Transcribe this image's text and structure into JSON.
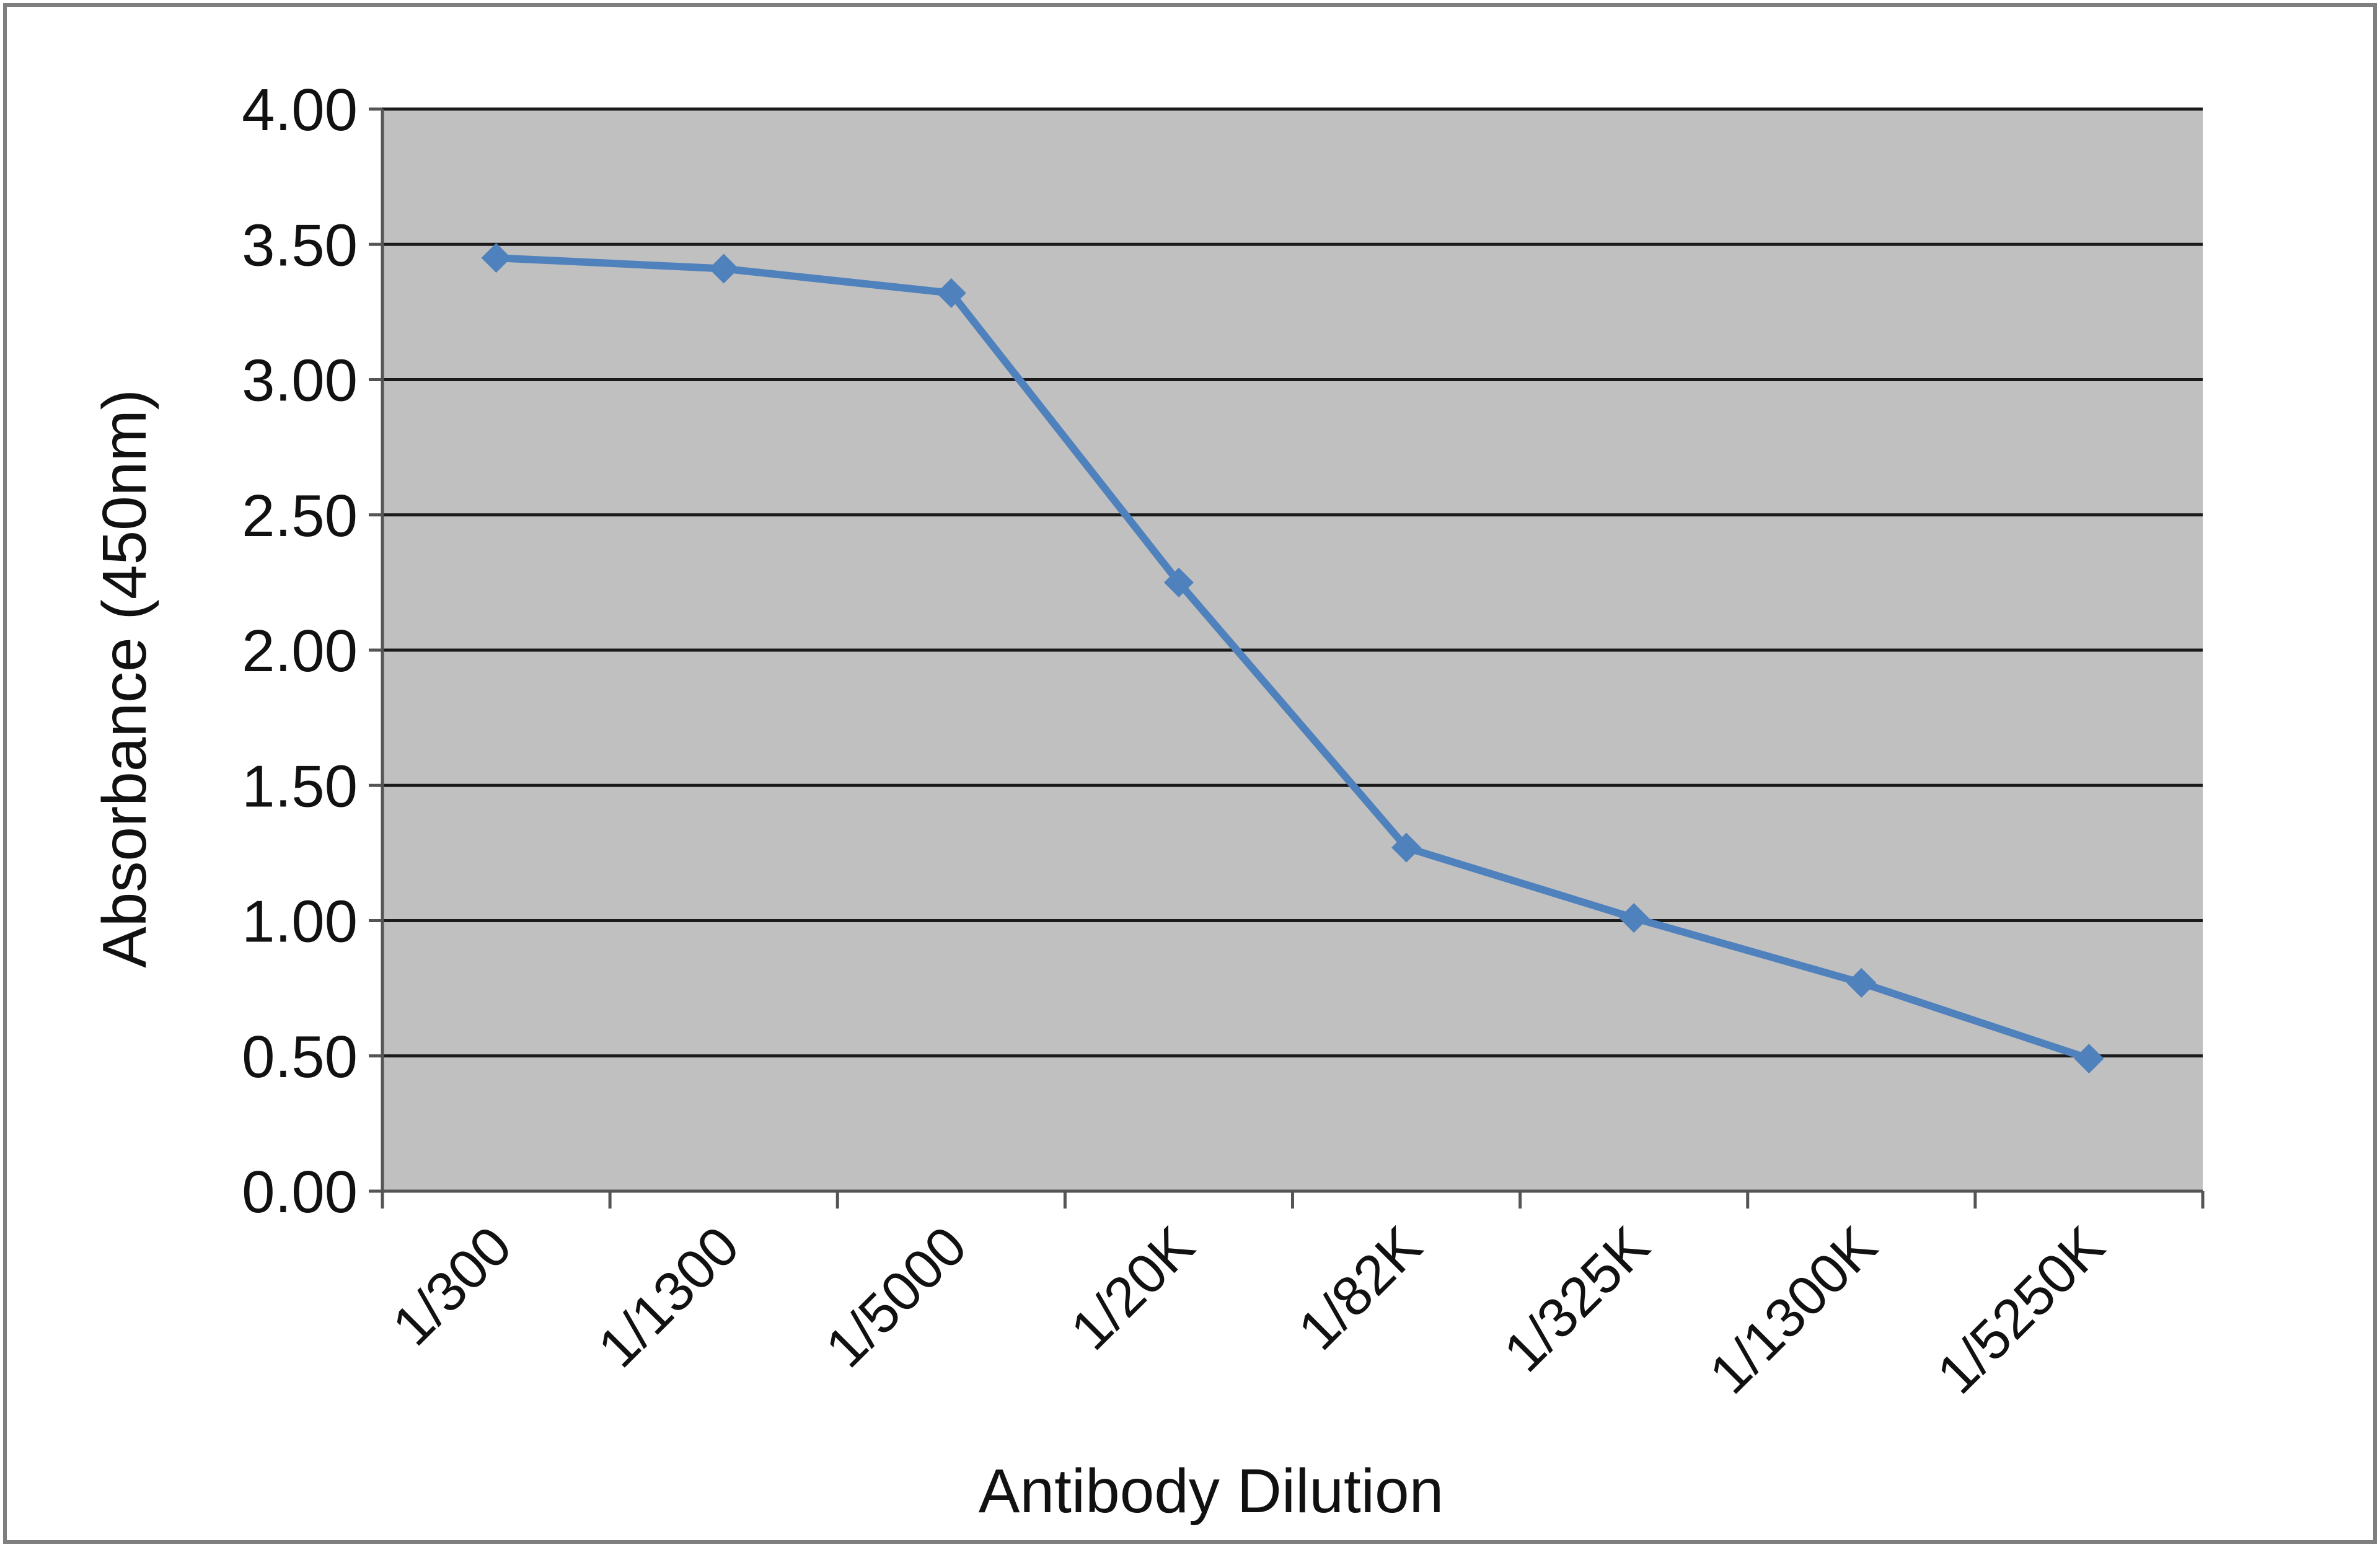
{
  "chart_data": {
    "type": "line",
    "title": "",
    "xlabel": "Antibody Dilution",
    "ylabel": "Absorbance (450nm)",
    "categories": [
      "1/300",
      "1/1300",
      "1/5000",
      "1/20K",
      "1/82K",
      "1/325K",
      "1/1300K",
      "1/5250K"
    ],
    "series": [
      {
        "values": [
          3.45,
          3.41,
          3.32,
          2.25,
          1.27,
          1.01,
          0.77,
          0.49
        ]
      }
    ],
    "ylim": [
      0,
      4
    ],
    "yticks": [
      "0.00",
      "0.50",
      "1.00",
      "1.50",
      "2.00",
      "2.50",
      "3.00",
      "3.50",
      "4.00"
    ],
    "grid": true,
    "legend": "none",
    "colors": {
      "plot_background": "#c0c0c0",
      "line": "#4f81bd",
      "gridline": "#1a1a1a",
      "frame": "#7f7f7f"
    }
  }
}
